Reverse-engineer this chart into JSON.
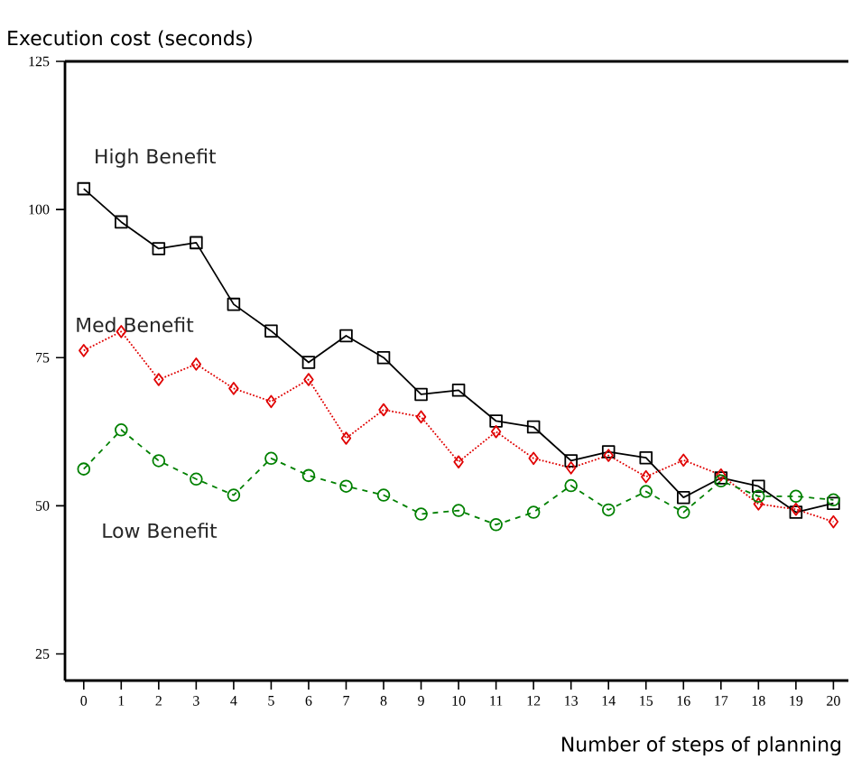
{
  "chart_data": {
    "type": "line",
    "ylabel": "Execution cost (seconds)",
    "xlabel": "Number of steps of planning",
    "x": [
      0,
      1,
      2,
      3,
      4,
      5,
      6,
      7,
      8,
      9,
      10,
      11,
      12,
      13,
      14,
      15,
      16,
      17,
      18,
      19,
      20
    ],
    "xlim": [
      -0.5,
      20.4
    ],
    "ylim": [
      20.5,
      125
    ],
    "xticks": [
      0,
      1,
      2,
      3,
      4,
      5,
      6,
      7,
      8,
      9,
      10,
      11,
      12,
      13,
      14,
      15,
      16,
      17,
      18,
      19,
      20
    ],
    "yticks": [
      25,
      50,
      75,
      100,
      125
    ],
    "grid": false,
    "legend": false,
    "series": [
      {
        "name": "High Benefit",
        "color": "#000000",
        "marker": "square",
        "line_style": "solid",
        "values": [
          103.5,
          97.9,
          93.4,
          94.4,
          84,
          79.5,
          74.2,
          78.7,
          75,
          68.8,
          69.5,
          64.3,
          63.3,
          57.6,
          59.1,
          58.1,
          51.4,
          54.7,
          53.3,
          48.9,
          50.4
        ]
      },
      {
        "name": "Med Benefit",
        "color": "#e00000",
        "marker": "diamond",
        "line_style": "dotted",
        "values": [
          76.2,
          79.4,
          71.3,
          73.9,
          69.8,
          67.6,
          71.3,
          61.4,
          66.2,
          65,
          57.4,
          62.5,
          58,
          56.4,
          58.5,
          54.9,
          57.7,
          55.2,
          50.3,
          49.4,
          47.3
        ]
      },
      {
        "name": "Low Benefit",
        "color": "#008000",
        "marker": "circle",
        "line_style": "dashed",
        "values": [
          56.2,
          62.8,
          57.6,
          54.5,
          51.8,
          58,
          55.1,
          53.3,
          51.8,
          48.6,
          49.2,
          46.8,
          48.9,
          53.4,
          49.3,
          52.4,
          48.9,
          54.2,
          51.6,
          51.6,
          51
        ]
      }
    ]
  }
}
